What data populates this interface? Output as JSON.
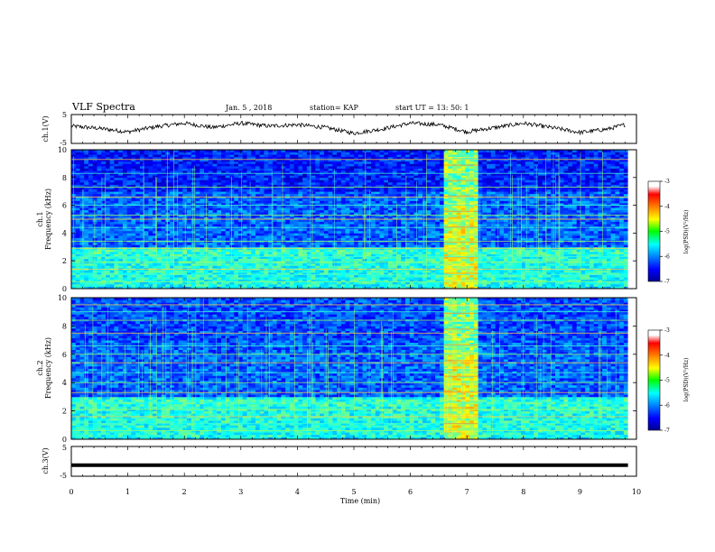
{
  "header": {
    "title": "VLF Spectra",
    "date": "Jan. 5 , 2018",
    "station": "station= KAP",
    "start_ut": "start UT = 13: 50: 1"
  },
  "chart_data": [
    {
      "type": "line",
      "panel": "ch1-waveform",
      "ylabel": "ch.1(V)",
      "ylim": [
        -5,
        5
      ],
      "yticks": [
        "5",
        "-5"
      ],
      "xlim": [
        0,
        10
      ],
      "note": "continuous noisy waveform, amplitude roughly +/-2 V about 0",
      "x": [
        0,
        0.5,
        1.0,
        1.5,
        2.0,
        2.5,
        3.0,
        3.5,
        4.0,
        4.5,
        5.0,
        5.5,
        6.0,
        6.5,
        7.0,
        7.5,
        8.0,
        8.5,
        9.0,
        9.5,
        9.8
      ],
      "values": [
        1.0,
        0.2,
        -1.0,
        0.8,
        2.0,
        0.5,
        2.0,
        1.0,
        1.5,
        0.5,
        -1.5,
        0.0,
        2.0,
        1.5,
        -1.0,
        0.5,
        2.0,
        0.5,
        -1.2,
        0.0,
        1.5
      ],
      "color": "#000000"
    },
    {
      "type": "heatmap",
      "panel": "ch1-spectrogram",
      "ylabel": "ch.1\nFrequency (kHz)",
      "ylim": [
        0,
        10
      ],
      "yticks": [
        "0",
        "2",
        "4",
        "6",
        "8",
        "10"
      ],
      "xlim": [
        0,
        10
      ],
      "colorbar": {
        "label": "log(PSD)(V²/Hz)",
        "range": [
          -7,
          -3
        ],
        "ticks": [
          "-3",
          "-4",
          "-5",
          "-6",
          "-7"
        ]
      },
      "burst": {
        "t_start": 6.6,
        "t_end": 7.2
      },
      "data_extent_min": 9.85
    },
    {
      "type": "heatmap",
      "panel": "ch2-spectrogram",
      "ylabel": "ch.2\nFrequency (kHz)",
      "ylim": [
        0,
        10
      ],
      "yticks": [
        "0",
        "2",
        "4",
        "6",
        "8",
        "10"
      ],
      "xlim": [
        0,
        10
      ],
      "colorbar": {
        "label": "log(PSD)(V²/Hz)",
        "range": [
          -7,
          -3
        ],
        "ticks": [
          "-3",
          "-4",
          "-5",
          "-6",
          "-7"
        ]
      },
      "burst": {
        "t_start": 6.6,
        "t_end": 7.2
      },
      "data_extent_min": 9.85
    },
    {
      "type": "line",
      "panel": "ch3-waveform",
      "ylabel": "ch.3(V)",
      "ylim": [
        -5,
        5
      ],
      "yticks": [
        "5",
        "-5"
      ],
      "xlim": [
        0,
        10
      ],
      "x": [
        0,
        9.85
      ],
      "values": [
        -1.3,
        -1.3
      ],
      "color": "#000000"
    }
  ],
  "xaxis": {
    "label": "Time (min)",
    "ticks": [
      "0",
      "1",
      "2",
      "3",
      "4",
      "5",
      "6",
      "7",
      "8",
      "9",
      "10"
    ]
  }
}
